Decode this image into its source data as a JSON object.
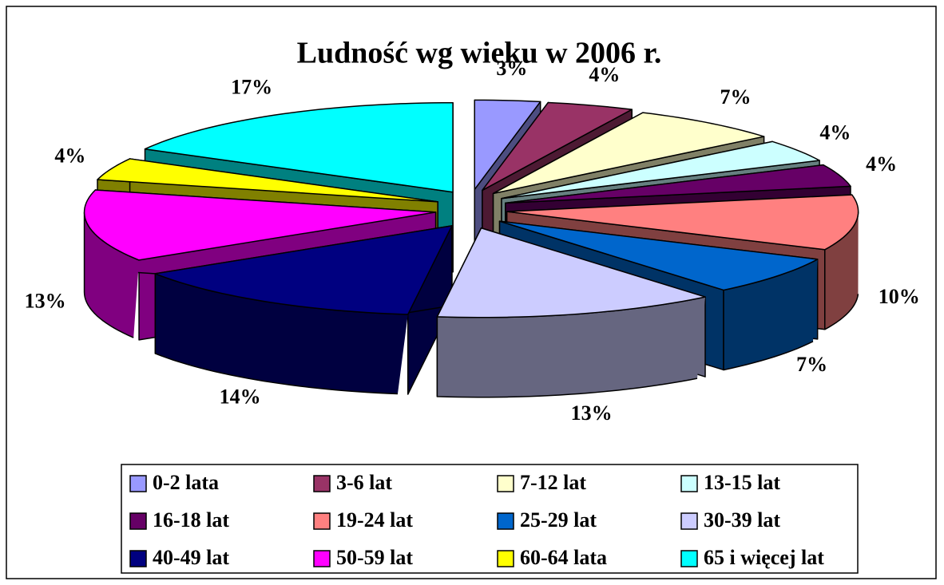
{
  "chart_data": {
    "type": "pie",
    "title": "Ludność wg wieku w 2006 r.",
    "categories": [
      "0-2 lata",
      "3-6 lat",
      "7-12 lat",
      "13-15 lat",
      "16-18 lat",
      "19-24 lat",
      "25-29 lat",
      "30-39 lat",
      "40-49 lat",
      "50-59 lat",
      "60-64 lata",
      "65 i więcej lat"
    ],
    "values": [
      3,
      4,
      7,
      4,
      4,
      10,
      7,
      13,
      14,
      13,
      4,
      17
    ],
    "value_labels": [
      "3%",
      "4%",
      "7%",
      "4%",
      "4%",
      "10%",
      "7%",
      "13%",
      "14%",
      "13%",
      "4%",
      "17%"
    ],
    "colors": [
      "#9999ff",
      "#993366",
      "#ffffcc",
      "#ccffff",
      "#660066",
      "#ff8080",
      "#0066cc",
      "#ccccff",
      "#000080",
      "#ff00ff",
      "#ffff00",
      "#00ffff"
    ],
    "legend": "bottom"
  }
}
